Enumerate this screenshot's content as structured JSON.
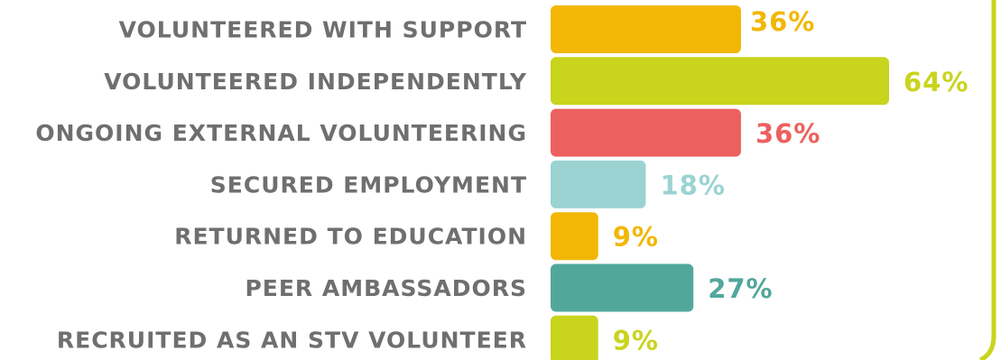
{
  "chart_data": {
    "type": "bar",
    "orientation": "horizontal",
    "categories": [
      "VOLUNTEERED WITH SUPPORT",
      "VOLUNTEERED INDEPENDENTLY",
      "ONGOING EXTERNAL VOLUNTEERING",
      "SECURED EMPLOYMENT",
      "RETURNED TO EDUCATION",
      "PEER AMBASSADORS",
      "RECRUITED AS AN STV VOLUNTEER"
    ],
    "values": [
      36,
      64,
      36,
      18,
      9,
      27,
      9
    ],
    "value_labels": [
      "36%",
      "64%",
      "36%",
      "18%",
      "9%",
      "27%",
      "9%"
    ],
    "colors": [
      "#F2B705",
      "#C9D41D",
      "#EC615F",
      "#9BD3D3",
      "#F2B705",
      "#52A79B",
      "#C9D41D"
    ],
    "label_color": "#6F6F6F",
    "xlim": [
      0,
      64
    ],
    "title": "",
    "xlabel": "",
    "ylabel": "",
    "grid": false,
    "legend": "none"
  }
}
